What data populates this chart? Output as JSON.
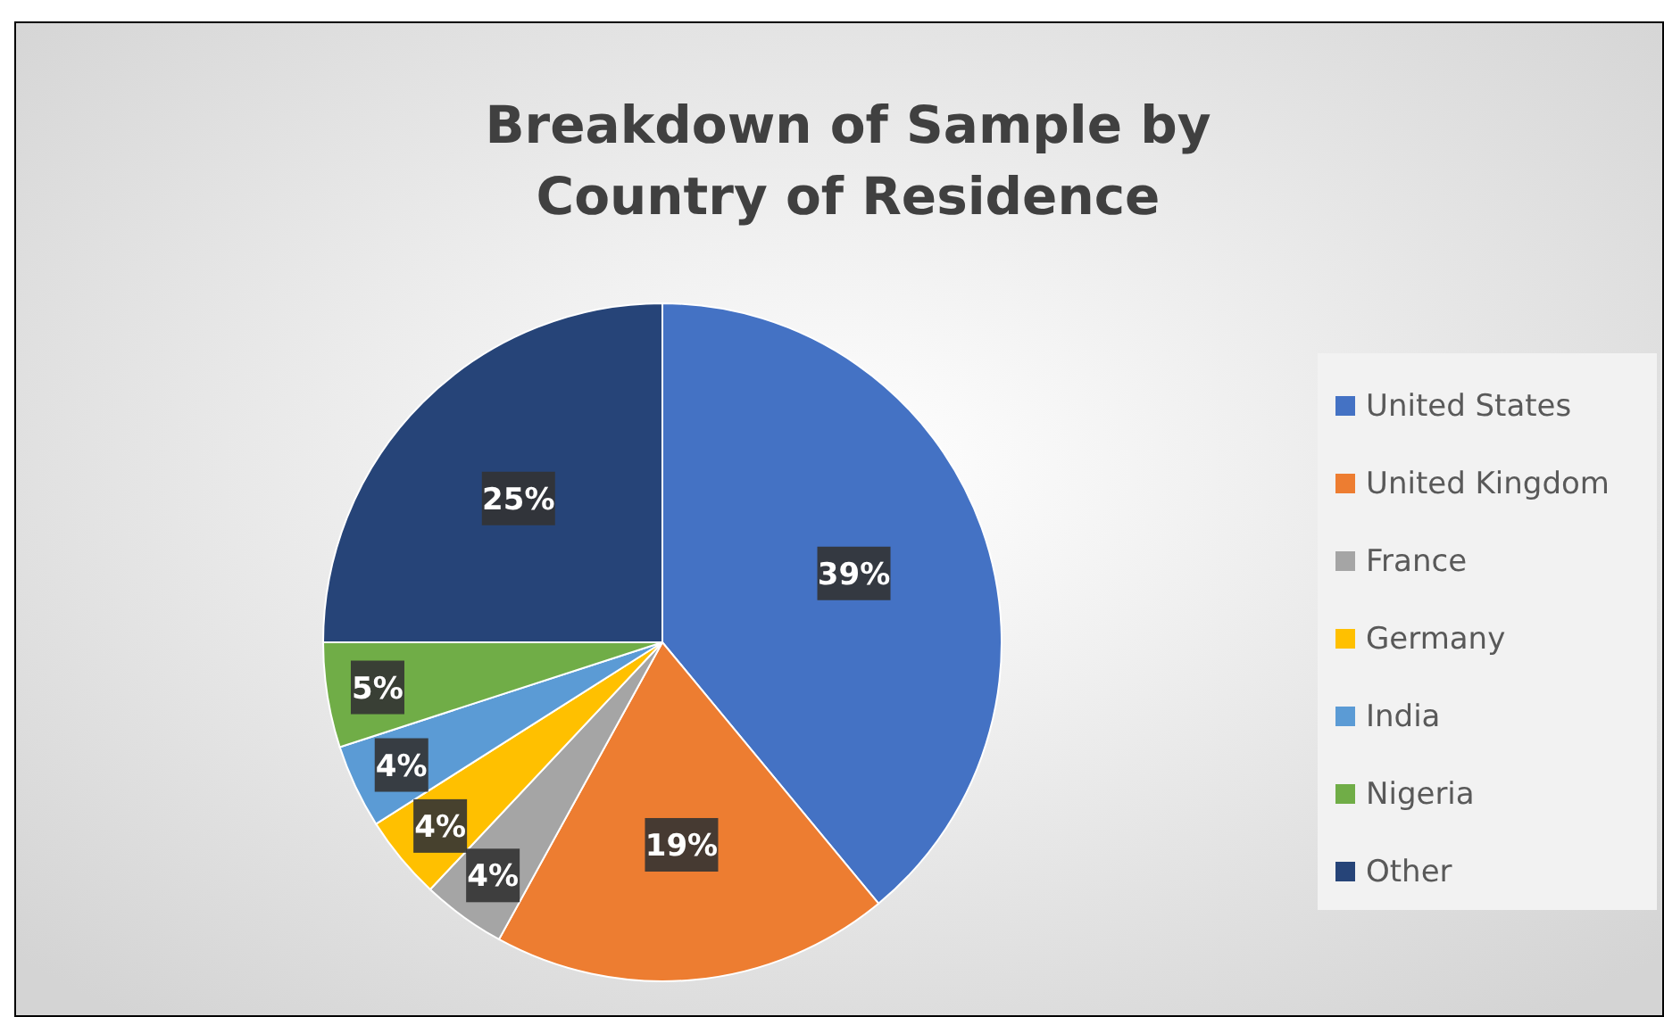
{
  "chart_data": {
    "type": "pie",
    "title": "Breakdown of Sample by Country of Residence",
    "categories": [
      "United States",
      "United Kingdom",
      "France",
      "Germany",
      "India",
      "Nigeria",
      "Other"
    ],
    "values": [
      39,
      19,
      4,
      4,
      4,
      5,
      25
    ],
    "colors": [
      "#4472c4",
      "#ed7d31",
      "#a5a5a5",
      "#ffc000",
      "#5b9bd5",
      "#70ad47",
      "#264478"
    ],
    "value_labels": [
      "39%",
      "19%",
      "4%",
      "4%",
      "4%",
      "5%",
      "25%"
    ],
    "legend": "right"
  }
}
